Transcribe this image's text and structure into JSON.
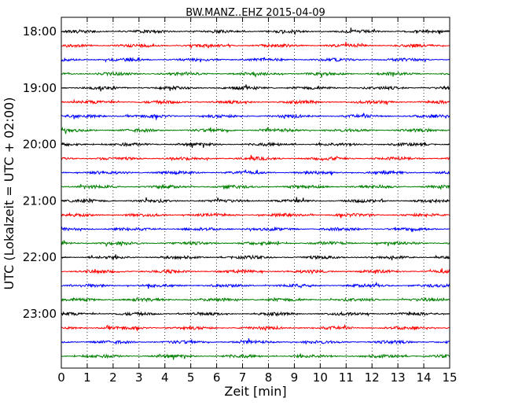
{
  "chart_data": {
    "type": "line",
    "title": "BW.MANZ..EHZ 2015-04-09",
    "xlabel": "Zeit  [min]",
    "ylabel": "UTC (Lokalzeit = UTC + 02:00)",
    "xlim": [
      0,
      15
    ],
    "x_ticks": [
      "0",
      "1",
      "2",
      "3",
      "4",
      "5",
      "6",
      "7",
      "8",
      "9",
      "10",
      "11",
      "12",
      "13",
      "14",
      "15"
    ],
    "y_tick_labels": [
      "18:00",
      "19:00",
      "20:00",
      "21:00",
      "22:00",
      "23:00"
    ],
    "grid": "vertical dotted lines at each minute",
    "trace_interval_minutes": 15,
    "trace_start_times": [
      "18:00",
      "18:15",
      "18:30",
      "18:45",
      "19:00",
      "19:15",
      "19:30",
      "19:45",
      "20:00",
      "20:15",
      "20:30",
      "20:45",
      "21:00",
      "21:15",
      "21:30",
      "21:45",
      "22:00",
      "22:15",
      "22:30",
      "22:45",
      "23:00",
      "23:15",
      "23:30",
      "23:45"
    ],
    "trace_color_cycle": [
      "#000000",
      "#ff0000",
      "#0000ff",
      "#008000"
    ]
  }
}
